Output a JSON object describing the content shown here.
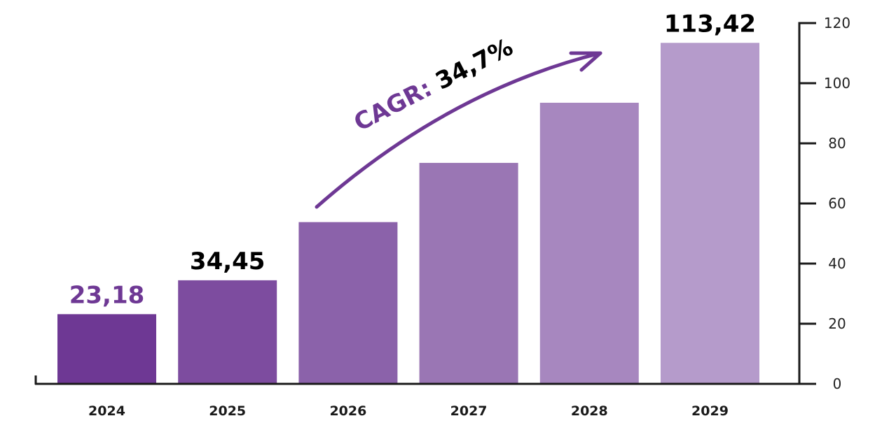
{
  "chart_data": {
    "type": "bar",
    "title": "",
    "xlabel": "",
    "ylabel": "",
    "categories": [
      "2024",
      "2025",
      "2026",
      "2027",
      "2028",
      "2029"
    ],
    "values": [
      23.18,
      34.45,
      53.8,
      73.5,
      93.5,
      113.42
    ],
    "data_labels": [
      "23,18",
      "34,45",
      null,
      null,
      null,
      "113,42"
    ],
    "data_label_colors": [
      "#6e3894",
      "#000000",
      null,
      null,
      null,
      "#000000"
    ],
    "bar_colors": [
      "#6e3894",
      "#7d4c9f",
      "#8b62aa",
      "#9a76b4",
      "#a787bf",
      "#b59bcb"
    ],
    "ylim": [
      0,
      120
    ],
    "yticks": [
      0,
      20,
      40,
      60,
      80,
      100,
      120
    ],
    "y_axis_side": "right",
    "grid": false,
    "annotation": {
      "prefix": "CAGR: ",
      "value": "34,7%",
      "prefix_color": "#6e3894",
      "value_color": "#000000",
      "arrow_color": "#6e3894",
      "arrow_from_category": "2026",
      "arrow_to_category": "2028"
    }
  }
}
